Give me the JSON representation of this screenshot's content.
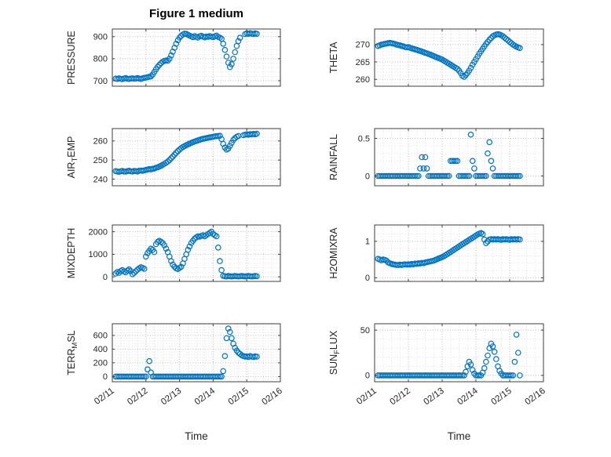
{
  "title": "Figure 1 medium",
  "x_axis": {
    "label": "Time",
    "lim": [
      0,
      5
    ],
    "ticks": [
      0,
      1,
      2,
      3,
      4,
      5
    ],
    "tick_labels": [
      "02/11",
      "02/12",
      "02/13",
      "02/14",
      "02/15",
      "02/16"
    ],
    "minor_step": 0.25
  },
  "style": {
    "marker_color": "#0072BD",
    "axis_color": "#3f3f3f",
    "major_grid_color": "#b8b8b8",
    "minor_grid_color": "#dedede",
    "text_color": "#262626",
    "marker_radius": 3.2
  },
  "chart_data": [
    {
      "name": "pressure",
      "type": "scatter",
      "row": 0,
      "col": 0,
      "ylabel": [
        {
          "text": "PRESSURE"
        }
      ],
      "ylim": [
        675,
        935
      ],
      "yticks": [
        700,
        800,
        900
      ],
      "minor_step": 20,
      "x0": 0.1,
      "dx": 0.05,
      "y": [
        710,
        708,
        711,
        709,
        707,
        710,
        712,
        709,
        708,
        710,
        711,
        709,
        710,
        712,
        710,
        708,
        711,
        713,
        714,
        716,
        718,
        720,
        728,
        740,
        752,
        763,
        772,
        780,
        786,
        790,
        792,
        791,
        800,
        815,
        832,
        850,
        868,
        884,
        896,
        904,
        910,
        914,
        913,
        909,
        905,
        901,
        898,
        903,
        899,
        896,
        902,
        904,
        900,
        897,
        901,
        899,
        903,
        900,
        898,
        902,
        905,
        899,
        896,
        890,
        868,
        840,
        810,
        782,
        762,
        775,
        800,
        830,
        858,
        880,
        895,
        null,
        null,
        912,
        915,
        913,
        916,
        914,
        912,
        915,
        913
      ]
    },
    {
      "name": "theta",
      "type": "scatter",
      "row": 0,
      "col": 1,
      "ylabel": [
        {
          "text": "THETA"
        }
      ],
      "ylim": [
        258,
        274.5
      ],
      "yticks": [
        260,
        265,
        270
      ],
      "minor_step": 1,
      "x0": 0.1,
      "dx": 0.05,
      "y": [
        269.6,
        269.8,
        270,
        270.1,
        270.2,
        270.3,
        270.4,
        270.5,
        270.4,
        270.3,
        270.2,
        270,
        269.9,
        269.8,
        269.6,
        269.5,
        269.3,
        269.2,
        269.3,
        269.1,
        268.9,
        268.8,
        268.6,
        268.5,
        268.3,
        268.2,
        268,
        267.8,
        267.6,
        267.5,
        267.3,
        267.1,
        266.9,
        266.7,
        266.5,
        266.3,
        266.1,
        265.9,
        265.7,
        265.4,
        265.1,
        264.8,
        264.5,
        264.2,
        263.9,
        263.6,
        263.3,
        263,
        262.5,
        261.8,
        261,
        260.7,
        261.2,
        261.8,
        262.5,
        263.3,
        264.2,
        265,
        265.8,
        266.6,
        267.4,
        268.1,
        268.8,
        269.5,
        270.2,
        270.8,
        271.4,
        271.9,
        272.4,
        272.7,
        272.9,
        273,
        272.9,
        272.7,
        272.4,
        272,
        271.6,
        271.2,
        270.8,
        270.4,
        270,
        269.7,
        269.4,
        269.2,
        269
      ]
    },
    {
      "name": "air-temp",
      "type": "scatter",
      "row": 1,
      "col": 0,
      "ylabel": [
        {
          "text": "AIR"
        },
        {
          "text": "T",
          "sub": true
        },
        {
          "text": "EMP"
        }
      ],
      "ylim": [
        236.5,
        266.5
      ],
      "yticks": [
        240,
        250,
        260
      ],
      "minor_step": 2,
      "x0": 0.1,
      "dx": 0.05,
      "y": [
        244.2,
        244,
        243.8,
        244.1,
        244.3,
        244,
        243.9,
        244.2,
        244.4,
        244.1,
        244,
        244.3,
        244.2,
        244,
        244.4,
        244.5,
        244.3,
        244.6,
        244.8,
        245,
        245.3,
        245.1,
        245.4,
        245.6,
        245.9,
        246.2,
        246.6,
        247,
        247.5,
        248,
        248.6,
        249.2,
        250,
        250.9,
        251.8,
        252.8,
        253.8,
        254.7,
        255.5,
        256.2,
        256.8,
        257.3,
        257.8,
        258.2,
        258.6,
        259,
        259.4,
        259.7,
        260,
        260.3,
        260.6,
        260.9,
        261.1,
        261.3,
        261.5,
        261.7,
        261.9,
        262,
        262.2,
        262.4,
        262.5,
        262.6,
        262.7,
        261,
        258.5,
        256.5,
        255.5,
        256,
        257.5,
        259,
        260.5,
        261.5,
        262.2,
        262.6,
        null,
        null,
        263,
        263.3,
        263.5,
        263.2,
        263.6,
        263.4,
        263.7,
        263.5,
        263.8
      ]
    },
    {
      "name": "rainfall",
      "type": "scatter",
      "row": 1,
      "col": 1,
      "ylabel": [
        {
          "text": "RAINFALL"
        }
      ],
      "ylim": [
        -0.13,
        0.63
      ],
      "yticks": [
        0,
        0.5
      ],
      "minor_step": 0.1,
      "x0": 0.1,
      "dx": 0.05,
      "y": [
        0,
        0,
        0,
        0,
        0,
        0,
        0,
        0,
        0,
        0,
        0,
        0,
        0,
        0,
        0,
        0,
        0,
        0,
        0,
        0,
        0,
        0,
        0,
        0,
        0,
        0.1,
        0.25,
        0.1,
        0.25,
        0.1,
        0,
        0,
        0,
        0,
        0,
        0,
        0,
        0,
        0,
        0,
        0,
        0,
        0,
        0.2,
        0.2,
        0.2,
        0.2,
        0.2,
        0,
        0,
        0,
        0,
        0,
        0,
        0,
        0.55,
        0.2,
        0.1,
        0,
        0,
        0,
        0,
        0,
        0,
        0,
        0.3,
        0.45,
        0.2,
        0.1,
        0,
        0,
        0,
        0,
        0,
        0,
        0,
        0,
        0,
        0,
        0,
        0,
        0,
        0,
        0,
        0
      ]
    },
    {
      "name": "mixdepth",
      "type": "scatter",
      "row": 2,
      "col": 0,
      "ylabel": [
        {
          "text": "MIXDEPTH"
        }
      ],
      "ylim": [
        -200,
        2300
      ],
      "yticks": [
        0,
        1000,
        2000
      ],
      "minor_step": 200,
      "x0": 0.1,
      "dx": 0.05,
      "y": [
        150,
        220,
        180,
        260,
        300,
        240,
        200,
        280,
        330,
        260,
        120,
        180,
        250,
        320,
        380,
        430,
        400,
        360,
        900,
        1050,
        1150,
        1250,
        1200,
        1100,
        1450,
        1550,
        1600,
        1550,
        1500,
        1400,
        1250,
        1100,
        900,
        700,
        550,
        450,
        380,
        350,
        400,
        450,
        600,
        800,
        1000,
        1200,
        1350,
        1500,
        1600,
        1700,
        1750,
        1800,
        1780,
        1820,
        1850,
        1800,
        1850,
        1900,
        1950,
        2000,
        1900,
        1850,
        1800,
        1300,
        700,
        300,
        50,
        30,
        20,
        40,
        30,
        20,
        30,
        40,
        30,
        20,
        30,
        40,
        30,
        20,
        30,
        40,
        30,
        20,
        30,
        40,
        30
      ]
    },
    {
      "name": "h2omixra",
      "type": "scatter",
      "row": 2,
      "col": 1,
      "ylabel": [
        {
          "text": "H2OMIXRA"
        }
      ],
      "ylim": [
        -0.1,
        1.45
      ],
      "yticks": [
        0,
        1
      ],
      "minor_step": 0.2,
      "x0": 0.1,
      "dx": 0.05,
      "y": [
        0.52,
        0.5,
        0.48,
        0.5,
        0.49,
        0.47,
        0.42,
        0.4,
        0.38,
        0.37,
        0.36,
        0.35,
        0.35,
        0.36,
        0.35,
        0.36,
        0.37,
        0.36,
        0.37,
        0.36,
        0.38,
        0.37,
        0.39,
        0.38,
        0.4,
        0.39,
        0.41,
        0.4,
        0.42,
        0.43,
        0.44,
        0.45,
        0.46,
        0.47,
        0.49,
        0.51,
        0.53,
        0.55,
        0.57,
        0.59,
        0.62,
        0.65,
        0.68,
        0.71,
        0.74,
        0.77,
        0.8,
        0.83,
        0.86,
        0.89,
        0.92,
        0.95,
        0.98,
        1.01,
        1.04,
        1.07,
        1.1,
        1.13,
        1.16,
        1.19,
        1.21,
        1.23,
        1.2,
        1.05,
        0.95,
        1,
        1.05,
        1.06,
        1.05,
        1.06,
        1.05,
        1.06,
        1.05,
        1.04,
        1.06,
        1.05,
        1.06,
        1.05,
        1.04,
        1.06,
        1.05,
        1.06,
        1.05,
        1.06,
        1.05
      ]
    },
    {
      "name": "terr-msl",
      "type": "scatter",
      "row": 3,
      "col": 0,
      "ylabel": [
        {
          "text": "TERR"
        },
        {
          "text": "M",
          "sub": true
        },
        {
          "text": "SL"
        }
      ],
      "ylim": [
        -75,
        770
      ],
      "yticks": [
        0,
        200,
        400,
        600
      ],
      "minor_step": 40,
      "x0": 0.1,
      "dx": 0.05,
      "y": [
        0,
        0,
        0,
        0,
        0,
        0,
        0,
        0,
        0,
        0,
        0,
        0,
        0,
        0,
        0,
        0,
        0,
        0,
        0,
        105,
        225,
        60,
        0,
        0,
        0,
        0,
        0,
        0,
        0,
        0,
        0,
        0,
        0,
        0,
        0,
        0,
        0,
        0,
        0,
        0,
        0,
        0,
        0,
        0,
        0,
        0,
        0,
        0,
        0,
        0,
        0,
        0,
        0,
        0,
        0,
        0,
        0,
        0,
        0,
        0,
        0,
        0,
        0,
        0,
        80,
        300,
        560,
        700,
        650,
        560,
        480,
        420,
        380,
        350,
        330,
        310,
        300,
        290,
        295,
        285,
        300,
        290,
        285,
        295,
        290
      ]
    },
    {
      "name": "sun-flux",
      "type": "scatter",
      "row": 3,
      "col": 1,
      "ylabel": [
        {
          "text": "SUN"
        },
        {
          "text": "F",
          "sub": true
        },
        {
          "text": "LUX"
        }
      ],
      "ylim": [
        -7,
        57
      ],
      "yticks": [
        0,
        50
      ],
      "minor_step": 10,
      "x0": 0.1,
      "dx": 0.05,
      "y": [
        0,
        0,
        0,
        0,
        0,
        0,
        0,
        0,
        0,
        0,
        0,
        0,
        0,
        0,
        0,
        0,
        0,
        0,
        0,
        0,
        0,
        0,
        0,
        0,
        0,
        0,
        0,
        0,
        0,
        0,
        0,
        0,
        0,
        0,
        0,
        0,
        0,
        0,
        0,
        0,
        0,
        0,
        0,
        0,
        0,
        0,
        0,
        0,
        0,
        0,
        0,
        0,
        4,
        10,
        15,
        12,
        6,
        2,
        0,
        0,
        0,
        0,
        3,
        8,
        15,
        22,
        30,
        35,
        32,
        26,
        18,
        10,
        5,
        2,
        0,
        0,
        0,
        0,
        0,
        0,
        0,
        15,
        45,
        25,
        0
      ]
    }
  ]
}
